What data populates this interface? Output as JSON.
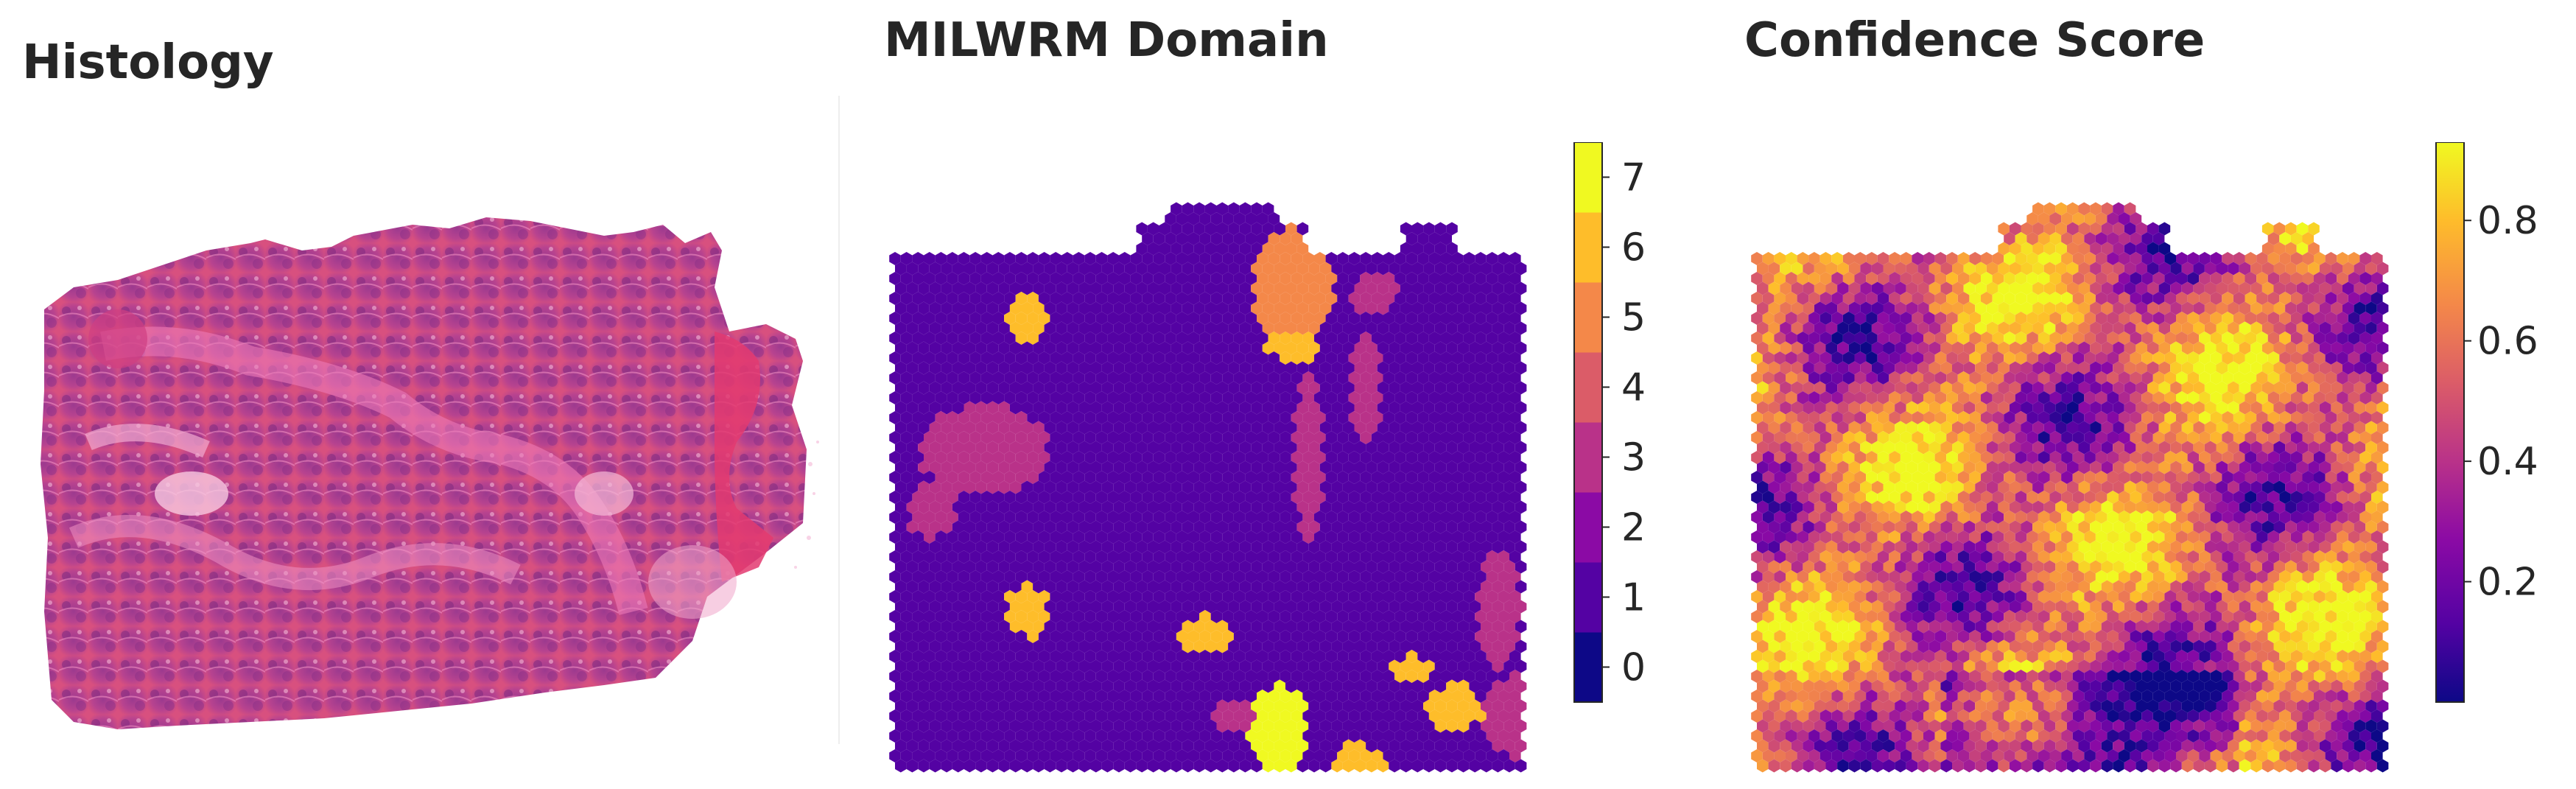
{
  "titles": {
    "histology": "Histology",
    "domain": "MILWRM Domain",
    "confidence": "Confidence Score"
  },
  "chart_data": [
    {
      "type": "image",
      "title": "Histology",
      "description": "H&E stained tissue section"
    },
    {
      "type": "heatmap",
      "title": "MILWRM Domain",
      "colormap": "plasma",
      "colorbar": {
        "ticks": [
          0,
          1,
          2,
          3,
          4,
          5,
          6,
          7
        ],
        "range": [
          -0.5,
          7.5
        ],
        "discrete": true,
        "colors": [
          "#0d0887",
          "#5402a3",
          "#8b0aa5",
          "#b93289",
          "#db5c68",
          "#f48849",
          "#febd2a",
          "#f0f921"
        ]
      },
      "dominant_domain": 1
    },
    {
      "type": "heatmap",
      "title": "Confidence Score",
      "colormap": "plasma",
      "colorbar": {
        "ticks": [
          0.2,
          0.4,
          0.6,
          0.8
        ],
        "tick_labels": [
          "0.2",
          "0.4",
          "0.6",
          "0.8"
        ],
        "range": [
          0.0,
          0.93
        ]
      }
    }
  ]
}
